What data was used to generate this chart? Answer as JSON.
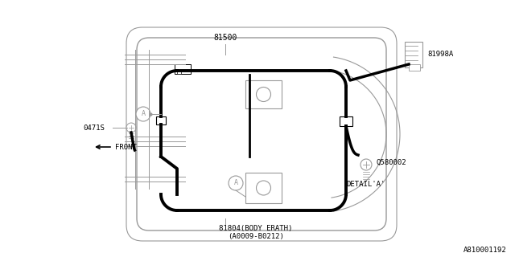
{
  "bg_color": "#ffffff",
  "line_color": "#000000",
  "gray_color": "#999999",
  "light_gray": "#cccccc",
  "title_bottom": "81804(BODY ERATH)",
  "title_bottom2": "(A0009-B0212)",
  "label_81500": "81500",
  "label_81998A": "81998A",
  "label_0471S": "0471S",
  "label_FRONT": "FRONT",
  "label_Q580002": "Q580002",
  "label_DETAIL": "DETAIL'A'",
  "label_A": "A",
  "watermark": "A810001192",
  "figsize": [
    6.4,
    3.2
  ],
  "dpi": 100
}
